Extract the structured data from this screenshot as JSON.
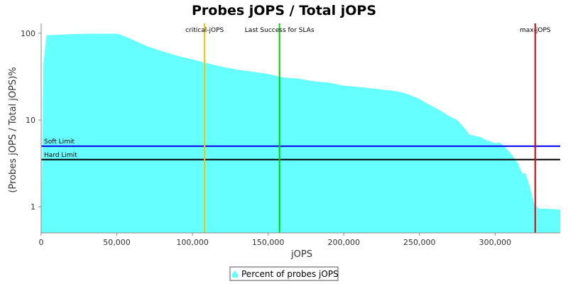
{
  "chart_data": {
    "type": "area",
    "title": "Probes jOPS / Total jOPS",
    "xlabel": "jOPS",
    "ylabel": "(Probes jOPS / Total jOPS)%",
    "xlim": [
      0,
      343000
    ],
    "ylim": [
      0.5,
      130
    ],
    "yscale": "log",
    "grid": false,
    "legend_position": "bottom",
    "x_ticks": [
      0,
      50000,
      100000,
      150000,
      200000,
      250000,
      300000
    ],
    "x_tick_labels": [
      "0",
      "50,000",
      "100,000",
      "150,000",
      "200,000",
      "250,000",
      "300,000"
    ],
    "y_ticks": [
      1,
      10,
      100
    ],
    "y_tick_labels": [
      "1",
      "10",
      "100"
    ],
    "series": [
      {
        "name": "Percent of probes jOPS",
        "color": "#66FFFF",
        "x": [
          0,
          1500,
          3500,
          10000,
          20000,
          30000,
          40000,
          50000,
          52000,
          60000,
          70000,
          80000,
          90000,
          100000,
          110000,
          120000,
          130000,
          140000,
          150000,
          160000,
          170000,
          180000,
          190000,
          200000,
          210000,
          220000,
          230000,
          235000,
          240000,
          245000,
          250000,
          255000,
          260000,
          265000,
          270000,
          275000,
          280000,
          283000,
          286000,
          290000,
          295000,
          300000,
          303000,
          306000,
          310000,
          315000,
          318000,
          320000,
          323000,
          326000,
          329000,
          333000,
          338000,
          343000
        ],
        "y": [
          0.5,
          45,
          95,
          96,
          98,
          99,
          99,
          99,
          97,
          85,
          71,
          62,
          55,
          50,
          45,
          41,
          38,
          36,
          34,
          31,
          30,
          28,
          27,
          25,
          24,
          23,
          22,
          21.5,
          20.5,
          19,
          17.5,
          15.5,
          14,
          12.5,
          11,
          10,
          8,
          6.8,
          6.6,
          6.4,
          5.8,
          5.4,
          5.5,
          5.0,
          4.2,
          3.2,
          2.4,
          2.45,
          1.7,
          1.05,
          0.95,
          0.95,
          0.94,
          0.93
        ]
      }
    ],
    "vertical_markers": [
      {
        "label": "critical-jOPS",
        "x": 108000,
        "color": "#FFC000"
      },
      {
        "label": "Last Success for SLAs",
        "x": 157500,
        "color": "#00D000"
      },
      {
        "label": "max-jOPS",
        "x": 326500,
        "color": "#E00000"
      }
    ],
    "horizontal_markers": [
      {
        "label": "Soft Limit",
        "y": 5,
        "color": "#0000EE"
      },
      {
        "label": "Hard Limit",
        "y": 3.5,
        "color": "#000000"
      }
    ]
  }
}
